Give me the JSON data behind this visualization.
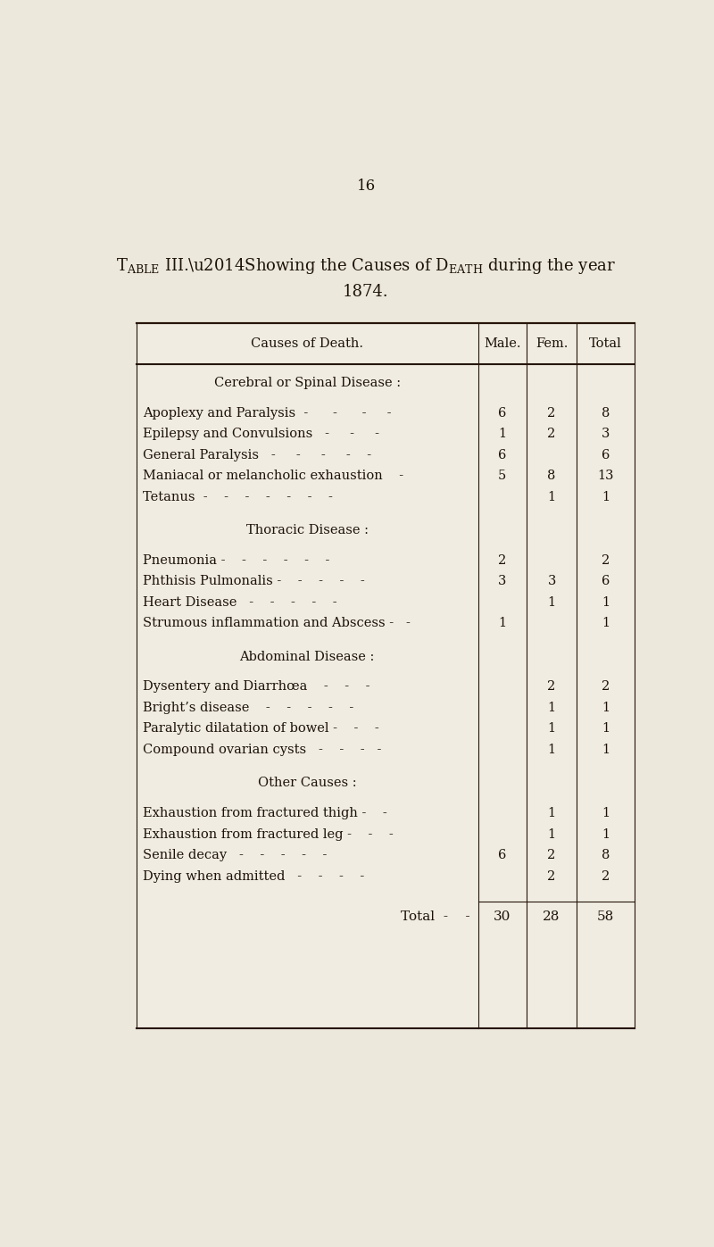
{
  "page_number": "16",
  "title_line1": "TABLe III.—Showing the Causes of DEATH during the year",
  "title_line2": "1874.",
  "bg_color": "#ede8dc",
  "text_color": "#1c1208",
  "header": [
    "Causes of Death.",
    "Male.",
    "Fem.",
    "Total"
  ],
  "sections": [
    {
      "section_header": "Cerebral or Spinal Disease :",
      "rows": [
        {
          "cause": "Apoplexy and Paralysis  -      -      -     -",
          "male": "6",
          "fem": "2",
          "total": "8"
        },
        {
          "cause": "Epilepsy and Convulsions   -     -     -",
          "male": "1",
          "fem": "2",
          "total": "3"
        },
        {
          "cause": "General Paralysis   -     -     -     -    -",
          "male": "6",
          "fem": "",
          "total": "6"
        },
        {
          "cause": "Maniacal or melancholic exhaustion    -",
          "male": "5",
          "fem": "8",
          "total": "13"
        },
        {
          "cause": "Tetanus  -    -    -    -    -    -    -",
          "male": "",
          "fem": "1",
          "total": "1"
        }
      ]
    },
    {
      "section_header": "Thoracic Disease :",
      "rows": [
        {
          "cause": "Pneumonia -    -    -    -    -    -",
          "male": "2",
          "fem": "",
          "total": "2"
        },
        {
          "cause": "Phthisis Pulmonalis -    -    -    -    -",
          "male": "3",
          "fem": "3",
          "total": "6"
        },
        {
          "cause": "Heart Disease   -    -    -    -    -",
          "male": "",
          "fem": "1",
          "total": "1"
        },
        {
          "cause": "Strumous inflammation and Abscess -   -",
          "male": "1",
          "fem": "",
          "total": "1"
        }
      ]
    },
    {
      "section_header": "Abdominal Disease :",
      "rows": [
        {
          "cause": "Dysentery and Diarrhœa    -    -    -",
          "male": "",
          "fem": "2",
          "total": "2"
        },
        {
          "cause": "Bright’s disease    -    -    -    -    -",
          "male": "",
          "fem": "1",
          "total": "1"
        },
        {
          "cause": "Paralytic dilatation of bowel -    -    -",
          "male": "",
          "fem": "1",
          "total": "1"
        },
        {
          "cause": "Compound ovarian cysts   -    -    -   -",
          "male": "",
          "fem": "1",
          "total": "1"
        }
      ]
    },
    {
      "section_header": "Other Causes :",
      "rows": [
        {
          "cause": "Exhaustion from fractured thigh -    -",
          "male": "",
          "fem": "1",
          "total": "1"
        },
        {
          "cause": "Exhaustion from fractured leg -    -    -",
          "male": "",
          "fem": "1",
          "total": "1"
        },
        {
          "cause": "Senile decay   -    -    -    -    -",
          "male": "6",
          "fem": "2",
          "total": "8"
        },
        {
          "cause": "Dying when admitted   -    -    -    -",
          "male": "",
          "fem": "2",
          "total": "2"
        }
      ]
    }
  ],
  "total_row": {
    "cause": "Total  -    -",
    "male": "30",
    "fem": "28",
    "total": "58"
  }
}
